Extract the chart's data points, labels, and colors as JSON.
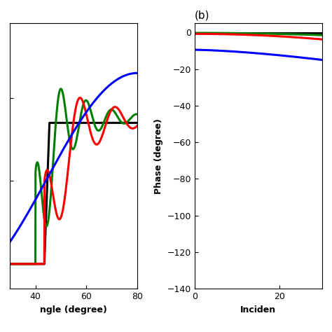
{
  "title_b": "(b)",
  "right_xlabel": "Inciden",
  "right_ylabel": "Phase (degree)",
  "left_xlim": [
    30,
    80
  ],
  "left_ylim": [
    -0.15,
    1.45
  ],
  "right_xlim": [
    0,
    30
  ],
  "right_ylim": [
    -140,
    5
  ],
  "right_yticks": [
    0,
    -20,
    -40,
    -60,
    -80,
    -100,
    -120,
    -140
  ],
  "left_xticks": [
    40,
    60,
    80
  ],
  "right_xticks": [
    0,
    20
  ],
  "colors": [
    "black",
    "green",
    "red",
    "blue"
  ],
  "linewidth": 2.2,
  "background_color": "white"
}
